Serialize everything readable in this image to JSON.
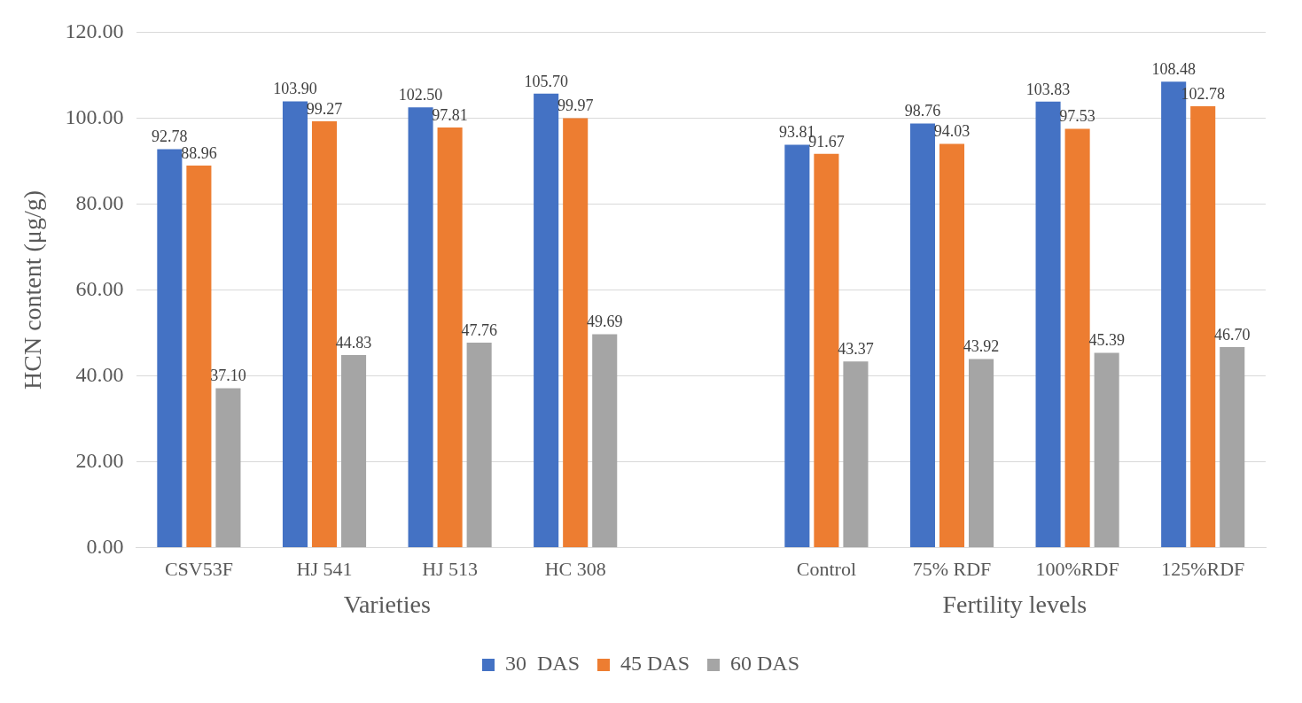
{
  "chart_data": {
    "type": "bar",
    "ylabel": "HCN content (μg/g)",
    "categories": [
      "CSV53F",
      "HJ 541",
      "HJ 513",
      "HC 308",
      null,
      "Control",
      "75% RDF",
      "100%RDF",
      "125%RDF"
    ],
    "series": [
      {
        "name": "30  DAS",
        "color": "#4472c4",
        "values": [
          92.78,
          103.9,
          102.5,
          105.7,
          null,
          93.81,
          98.76,
          103.83,
          108.48
        ],
        "value_labels": [
          "92.78",
          "103.90",
          "102.50",
          "105.70",
          null,
          "93.81",
          "98.76",
          "103.83",
          "108.48"
        ]
      },
      {
        "name": "45 DAS",
        "color": "#ed7d31",
        "values": [
          88.96,
          99.27,
          97.81,
          99.97,
          null,
          91.67,
          94.03,
          97.53,
          102.78
        ],
        "value_labels": [
          "88.96",
          "99.27",
          "97.81",
          "99.97",
          null,
          "91.67",
          "94.03",
          "97.53",
          "102.78"
        ]
      },
      {
        "name": "60 DAS",
        "color": "#a5a5a5",
        "values": [
          37.1,
          44.83,
          47.76,
          49.69,
          null,
          43.37,
          43.92,
          45.39,
          46.7
        ],
        "value_labels": [
          "37.10",
          "44.83",
          "47.76",
          "49.69",
          null,
          "43.37",
          "43.92",
          "45.39",
          "46.70"
        ]
      }
    ],
    "ylim": [
      0,
      120
    ],
    "yticks": [
      {
        "value": 0,
        "label": "0.00"
      },
      {
        "value": 20,
        "label": "20.00"
      },
      {
        "value": 40,
        "label": "40.00"
      },
      {
        "value": 60,
        "label": "60.00"
      },
      {
        "value": 80,
        "label": "80.00"
      },
      {
        "value": 100,
        "label": "100.00"
      },
      {
        "value": 120,
        "label": "120.00"
      }
    ],
    "annotations": [
      "Varieties",
      "Fertility levels"
    ],
    "grid": "y",
    "legend": "bottom"
  }
}
